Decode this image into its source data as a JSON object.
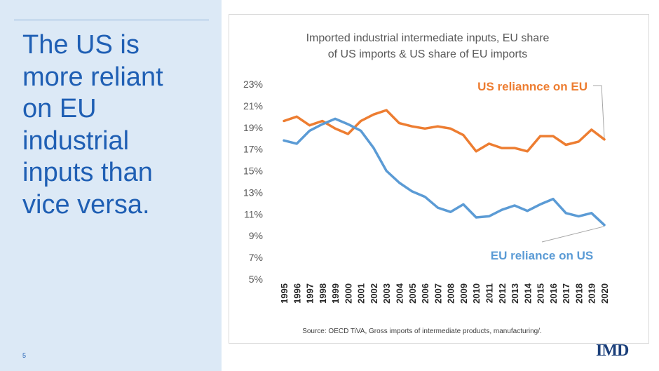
{
  "slide": {
    "headline_lines": [
      "The US is",
      "more reliant",
      "on EU",
      "industrial",
      "inputs than",
      "vice versa."
    ],
    "page_number": "5",
    "logo_text": "IMD",
    "colors": {
      "accent": "#1f5fb4",
      "panel_bg": "#dce9f6",
      "orange": "#ed7d31",
      "blue": "#5b9bd5"
    }
  },
  "chart_data": {
    "type": "line",
    "title": "Imported industrial intermediate inputs, EU share of US imports & US share of EU imports",
    "title_lines": [
      "Imported industrial intermediate inputs, EU share",
      "of US imports & US share of EU imports"
    ],
    "x": [
      "1995",
      "1996",
      "1997",
      "1998",
      "1999",
      "2000",
      "2001",
      "2002",
      "2003",
      "2004",
      "2005",
      "2006",
      "2007",
      "2008",
      "2009",
      "2010",
      "2011",
      "2012",
      "2013",
      "2014",
      "2015",
      "2016",
      "2017",
      "2018",
      "2019",
      "2020"
    ],
    "y_ticks": [
      "23%",
      "21%",
      "19%",
      "17%",
      "15%",
      "13%",
      "11%",
      "9%",
      "7%",
      "5%"
    ],
    "ylim": [
      5,
      23
    ],
    "series": [
      {
        "name": "US reliannce on EU",
        "color": "#ed7d31",
        "values": [
          19.6,
          20.0,
          19.2,
          19.6,
          18.9,
          18.4,
          19.6,
          20.2,
          20.6,
          19.4,
          19.1,
          18.9,
          19.1,
          18.9,
          18.3,
          16.8,
          17.5,
          17.1,
          17.1,
          16.8,
          18.2,
          18.2,
          17.4,
          17.7,
          18.8,
          17.9
        ]
      },
      {
        "name": "EU reliance on US",
        "color": "#5b9bd5",
        "values": [
          17.8,
          17.5,
          18.7,
          19.3,
          19.8,
          19.3,
          18.7,
          17.1,
          15.0,
          13.9,
          13.1,
          12.6,
          11.6,
          11.2,
          11.9,
          10.7,
          10.8,
          11.4,
          11.8,
          11.3,
          11.9,
          12.4,
          11.1,
          10.8,
          11.1,
          10.0
        ]
      }
    ],
    "source": "Source: OECD TiVA, Gross imports of intermediate products, manufacturing/."
  }
}
